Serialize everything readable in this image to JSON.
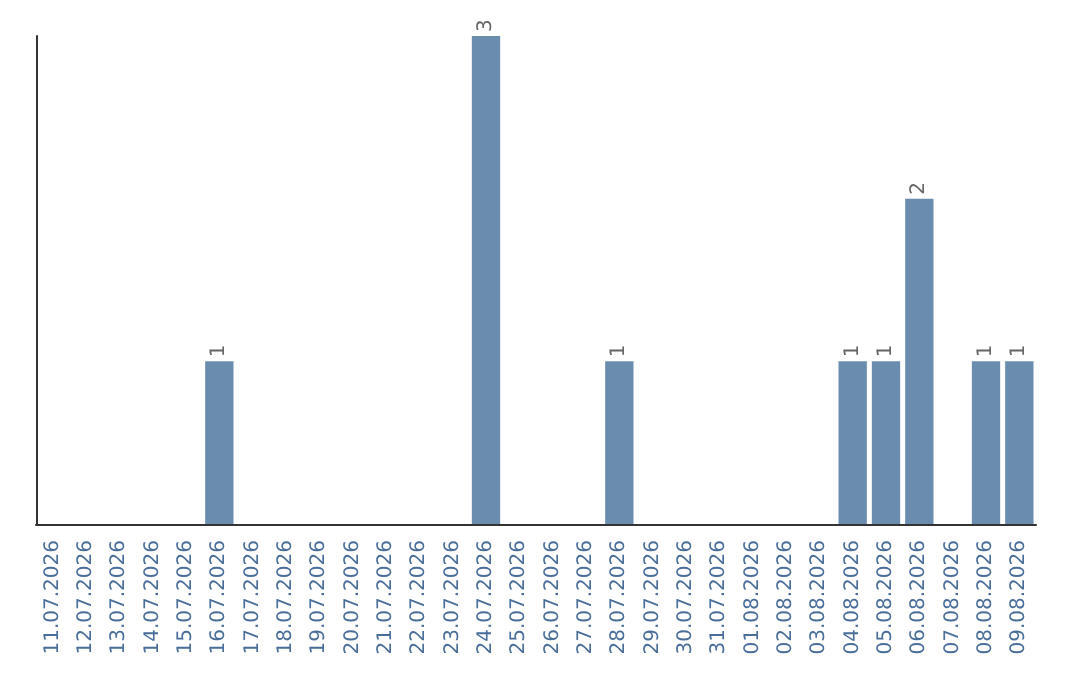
{
  "chart_data": {
    "type": "bar",
    "categories": [
      "11.07.2026",
      "12.07.2026",
      "13.07.2026",
      "14.07.2026",
      "15.07.2026",
      "16.07.2026",
      "17.07.2026",
      "18.07.2026",
      "19.07.2026",
      "20.07.2026",
      "21.07.2026",
      "22.07.2026",
      "23.07.2026",
      "24.07.2026",
      "25.07.2026",
      "26.07.2026",
      "27.07.2026",
      "28.07.2026",
      "29.07.2026",
      "30.07.2026",
      "31.07.2026",
      "01.08.2026",
      "02.08.2026",
      "03.08.2026",
      "04.08.2026",
      "05.08.2026",
      "06.08.2026",
      "07.08.2026",
      "08.08.2026",
      "09.08.2026"
    ],
    "values": [
      0,
      0,
      0,
      0,
      0,
      1,
      0,
      0,
      0,
      0,
      0,
      0,
      0,
      3,
      0,
      0,
      0,
      1,
      0,
      0,
      0,
      0,
      0,
      0,
      1,
      1,
      2,
      0,
      1,
      1
    ],
    "value_labels": [
      null,
      null,
      null,
      null,
      null,
      "1",
      null,
      null,
      null,
      null,
      null,
      null,
      null,
      "3",
      null,
      null,
      null,
      "1",
      null,
      null,
      null,
      null,
      null,
      null,
      "1",
      "1",
      "2",
      null,
      "1",
      "1"
    ],
    "color": "#6a8caf",
    "tick_labels": "x"
  }
}
